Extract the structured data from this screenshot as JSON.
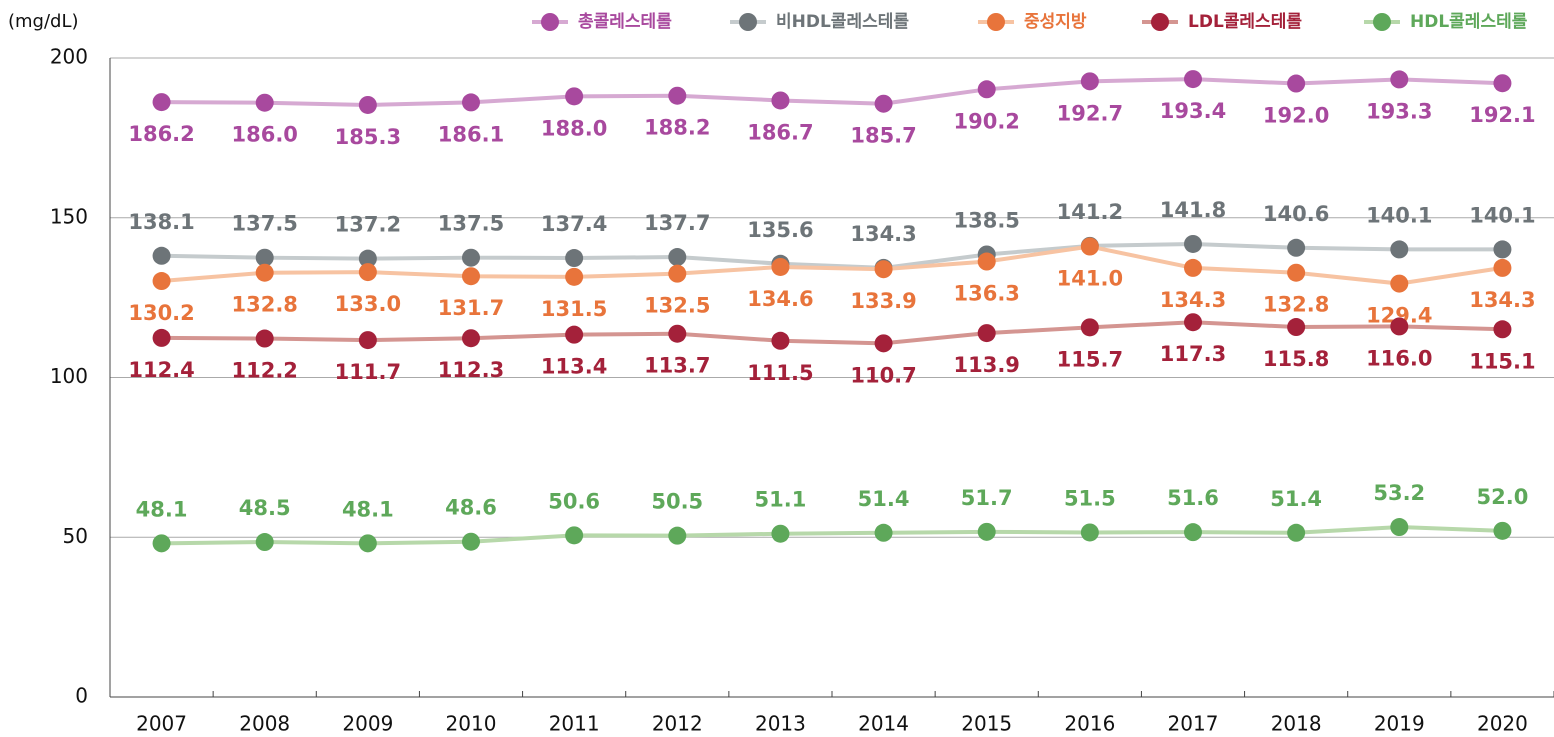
{
  "chart_data": {
    "type": "line",
    "y_label": "(mg/dL)",
    "categories": [
      "2007",
      "2008",
      "2009",
      "2010",
      "2011",
      "2012",
      "2013",
      "2014",
      "2015",
      "2016",
      "2017",
      "2018",
      "2019",
      "2020"
    ],
    "ylim": [
      0,
      200
    ],
    "yticks": [
      0,
      50,
      100,
      150,
      200
    ],
    "grid": true,
    "legend": "top-right",
    "series": [
      {
        "name": "총콜레스테롤",
        "color": "#a8499e",
        "line_color": "#d6a9d2",
        "label_position": "below",
        "values": [
          186.2,
          186.0,
          185.3,
          186.1,
          188.0,
          188.2,
          186.7,
          185.7,
          190.2,
          192.7,
          193.4,
          192.0,
          193.3,
          192.1
        ],
        "value_labels": [
          "186.2",
          "186.0",
          "185.3",
          "186.1",
          "188.0",
          "188.2",
          "186.7",
          "185.7",
          "190.2",
          "192.7",
          "193.4",
          "192.0",
          "193.3",
          "192.1"
        ]
      },
      {
        "name": "비HDL콜레스테롤",
        "color": "#6d7478",
        "line_color": "#c5cbcd",
        "label_position": "above",
        "values": [
          138.1,
          137.5,
          137.2,
          137.5,
          137.4,
          137.7,
          135.6,
          134.3,
          138.5,
          141.2,
          141.8,
          140.6,
          140.1,
          140.1
        ],
        "value_labels": [
          "138.1",
          "137.5",
          "137.2",
          "137.5",
          "137.4",
          "137.7",
          "135.6",
          "134.3",
          "138.5",
          "141.2",
          "141.8",
          "140.6",
          "140.1",
          "140.1"
        ]
      },
      {
        "name": "중성지방",
        "color": "#e8743b",
        "line_color": "#f7c3a2",
        "label_position": "below",
        "values": [
          130.2,
          132.8,
          133.0,
          131.7,
          131.5,
          132.5,
          134.6,
          133.9,
          136.3,
          141.0,
          134.3,
          132.8,
          129.4,
          134.3
        ],
        "value_labels": [
          "130.2",
          "132.8",
          "133.0",
          "131.7",
          "131.5",
          "132.5",
          "134.6",
          "133.9",
          "136.3",
          "141.0",
          "134.3",
          "132.8",
          "129.4",
          "134.3"
        ]
      },
      {
        "name": "LDL콜레스테롤",
        "color": "#a4213a",
        "line_color": "#d49591",
        "label_position": "below",
        "values": [
          112.4,
          112.2,
          111.7,
          112.3,
          113.4,
          113.7,
          111.5,
          110.7,
          113.9,
          115.7,
          117.3,
          115.8,
          116.0,
          115.1
        ],
        "value_labels": [
          "112.4",
          "112.2",
          "111.7",
          "112.3",
          "113.4",
          "113.7",
          "111.5",
          "110.7",
          "113.9",
          "115.7",
          "117.3",
          "115.8",
          "116.0",
          "115.1"
        ]
      },
      {
        "name": "HDL콜레스테롤",
        "color": "#5ea85a",
        "line_color": "#b7d8aa",
        "label_position": "above",
        "values": [
          48.1,
          48.5,
          48.1,
          48.6,
          50.6,
          50.5,
          51.1,
          51.4,
          51.7,
          51.5,
          51.6,
          51.4,
          53.2,
          52.0
        ],
        "value_labels": [
          "48.1",
          "48.5",
          "48.1",
          "48.6",
          "50.6",
          "50.5",
          "51.1",
          "51.4",
          "51.7",
          "51.5",
          "51.6",
          "51.4",
          "53.2",
          "52.0"
        ]
      }
    ]
  }
}
